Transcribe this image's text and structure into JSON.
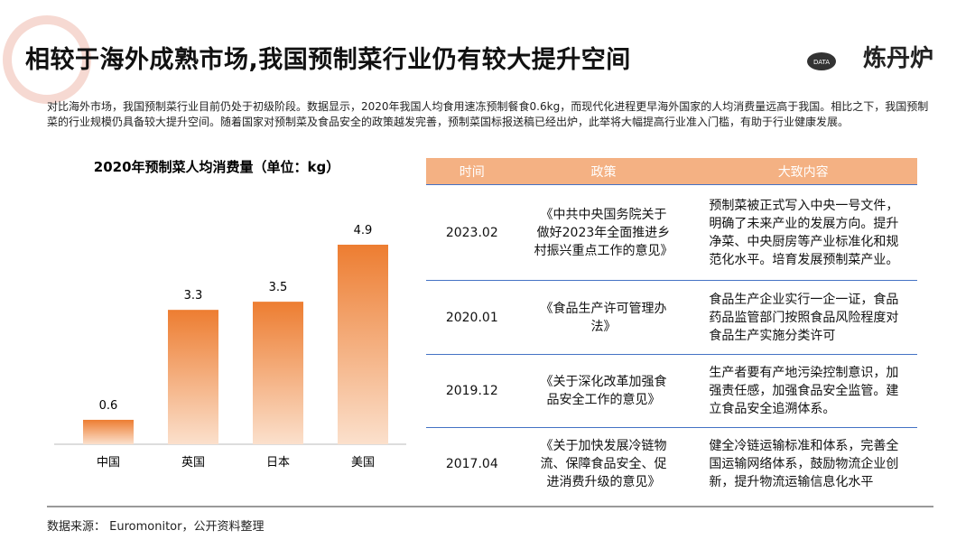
{
  "header": {
    "title": "相较于海外成熟市场,我国预制菜行业仍有较大提升空间",
    "logo_badge": "DATA",
    "logo_text": "炼丹炉"
  },
  "intro": "对比海外市场，我国预制菜行业目前仍处于初级阶段。数据显示，2020年我国人均食用速冻预制餐食0.6kg，而现代化进程更早海外国家的人均消费量远高于我国。相比之下，我国预制菜的行业规模仍具备较大提升空间。随着国家对预制菜及食品安全的政策越发完善，预制菜国标报送稿已经出炉，此举将大幅提高行业准入门槛，有助于行业健康发展。",
  "chart_data": {
    "type": "bar",
    "title": "2020年预制菜人均消费量（单位：kg）",
    "categories": [
      "中国",
      "英国",
      "日本",
      "美国"
    ],
    "values": [
      0.6,
      3.3,
      3.5,
      4.9
    ],
    "color": "#ed7d31"
  },
  "table": {
    "header": [
      "时间",
      "政策",
      "大致内容"
    ],
    "rows": [
      [
        "2023.02",
        "《中共中央国务院关于做好2023年全面推进乡村振兴重点工作的意见》",
        "预制菜被正式写入中央一号文件，明确了未来产业的发展方向。提升净菜、中央厨房等产业标准化和规范化水平。培育发展预制菜产业。"
      ],
      [
        "2020.01",
        "《食品生产许可管理办法》",
        "食品生产企业实行一企一证，食品药品监管部门按照食品风险程度对食品生产实施分类许可"
      ],
      [
        "2019.12",
        "《关于深化改革加强食品安全工作的意见》",
        "生产者要有产地污染控制意识，加强责任感，加强食品安全监管。建立食品安全追溯体系。"
      ],
      [
        "2017.04",
        "《关于加快发展冷链物流、保障食品安全、促进消费升级的意见》",
        "健全冷链运输标准和体系，完善全国运输网络体系，鼓励物流企业创新，提升物流运输信息化水平"
      ]
    ]
  },
  "source": "数据来源： Euromonitor，公开资料整理"
}
